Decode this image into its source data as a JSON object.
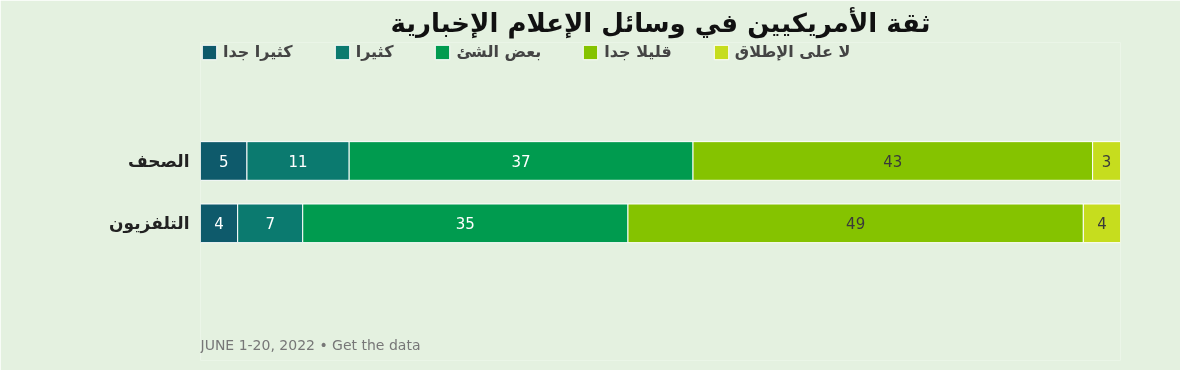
{
  "chart_data": {
    "type": "bar",
    "orientation": "horizontal",
    "stacked": true,
    "title": "ثقة الأمريكيين في وسائل الإعلام الإخبارية",
    "categories": [
      "الصحف",
      "التلفزيون"
    ],
    "series": [
      {
        "name": "كثيرا جدا",
        "color": "#0e5a6b",
        "values": [
          5,
          4
        ]
      },
      {
        "name": "كثيرا",
        "color": "#0b7a6f",
        "values": [
          11,
          7
        ]
      },
      {
        "name": "بعض الشئ",
        "color": "#009b4f",
        "values": [
          37,
          35
        ]
      },
      {
        "name": "قليلا جدا",
        "color": "#85c300",
        "values": [
          43,
          49
        ]
      },
      {
        "name": "لا على الإطلاق",
        "color": "#c6dd1e",
        "values": [
          3,
          4
        ]
      }
    ],
    "data_labels": true,
    "legend": "top left",
    "grid": false,
    "annotations": [
      "JUNE 1-20, 2022 • Get the data"
    ]
  }
}
